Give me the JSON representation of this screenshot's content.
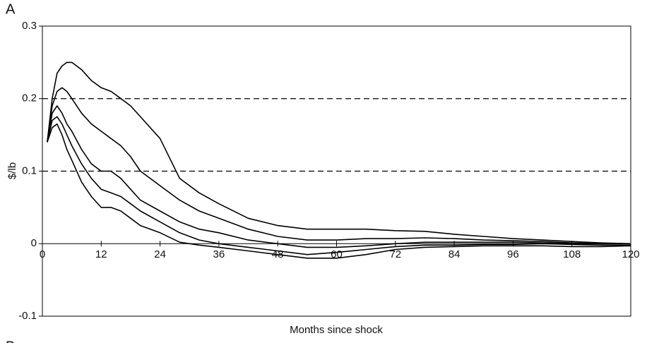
{
  "chart_data": {
    "type": "line",
    "panel_label": "A",
    "next_panel_label": "B",
    "xlabel": "Months since shock",
    "ylabel": "$/lb",
    "x": [
      1,
      2,
      3,
      4,
      5,
      6,
      8,
      10,
      12,
      14,
      16,
      18,
      20,
      24,
      28,
      32,
      36,
      42,
      48,
      54,
      60,
      66,
      72,
      78,
      84,
      90,
      96,
      102,
      108,
      114,
      120
    ],
    "series": [
      {
        "color": "#000000",
        "values": [
          0.14,
          0.2,
          0.235,
          0.245,
          0.25,
          0.25,
          0.24,
          0.225,
          0.215,
          0.21,
          0.2,
          0.19,
          0.175,
          0.145,
          0.09,
          0.07,
          0.055,
          0.035,
          0.025,
          0.02,
          0.02,
          0.02,
          0.018,
          0.017,
          0.013,
          0.01,
          0.007,
          0.005,
          0.003,
          0.001,
          0
        ]
      },
      {
        "color": "#000000",
        "values": [
          0.14,
          0.19,
          0.21,
          0.215,
          0.21,
          0.2,
          0.18,
          0.165,
          0.155,
          0.145,
          0.135,
          0.12,
          0.1,
          0.08,
          0.06,
          0.045,
          0.035,
          0.02,
          0.01,
          0.005,
          0.005,
          0.007,
          0.007,
          0.008,
          0.007,
          0.005,
          0.004,
          0.003,
          0.001,
          0,
          0
        ]
      },
      {
        "color": "#000000",
        "values": [
          0.14,
          0.18,
          0.19,
          0.18,
          0.165,
          0.155,
          0.13,
          0.11,
          0.1,
          0.1,
          0.09,
          0.075,
          0.06,
          0.045,
          0.03,
          0.02,
          0.015,
          0.005,
          0,
          -0.005,
          -0.005,
          -0.003,
          0,
          0.002,
          0.002,
          0.002,
          0.002,
          0.001,
          0,
          0,
          0
        ]
      },
      {
        "color": "#000000",
        "values": [
          0.14,
          0.17,
          0.175,
          0.165,
          0.15,
          0.135,
          0.11,
          0.09,
          0.075,
          0.07,
          0.065,
          0.055,
          0.045,
          0.03,
          0.015,
          0.005,
          0,
          -0.005,
          -0.01,
          -0.015,
          -0.012,
          -0.008,
          -0.004,
          -0.002,
          -0.002,
          -0.001,
          -0.001,
          0,
          -0.001,
          -0.002,
          -0.002
        ]
      },
      {
        "color": "#000000",
        "values": [
          0.14,
          0.16,
          0.165,
          0.15,
          0.13,
          0.115,
          0.085,
          0.065,
          0.05,
          0.05,
          0.045,
          0.035,
          0.025,
          0.015,
          0.002,
          -0.002,
          -0.005,
          -0.01,
          -0.015,
          -0.02,
          -0.02,
          -0.015,
          -0.008,
          -0.005,
          -0.004,
          -0.003,
          -0.003,
          -0.003,
          -0.004,
          -0.004,
          -0.003
        ]
      }
    ],
    "xlim": [
      0,
      120
    ],
    "xticks": [
      0,
      12,
      24,
      36,
      48,
      60,
      72,
      84,
      96,
      108,
      120
    ],
    "ylim": [
      -0.1,
      0.3
    ],
    "yticks": [
      -0.1,
      0,
      0.1,
      0.2,
      0.3
    ],
    "reference_lines": [
      0.1,
      0.2
    ]
  }
}
